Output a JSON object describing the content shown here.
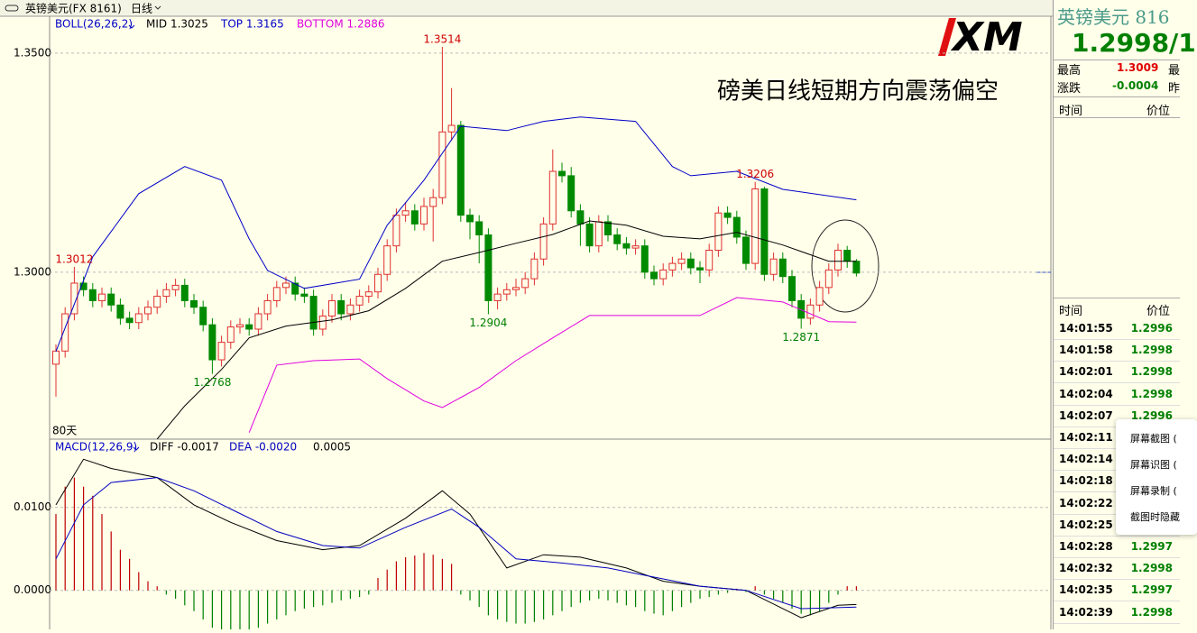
{
  "toolbar": {
    "symbol": "英镑美元(FX 8161)",
    "period": "日线"
  },
  "headline": "磅美日线短期方向震荡偏空",
  "logo": "XM",
  "chart_data": [
    {
      "type": "candlestick",
      "title": "BOLL(26,26,2)",
      "footnote": "80天",
      "up_color": "#e03030",
      "down_color": "#008a00",
      "open": [
        1.279,
        1.282,
        1.2905,
        1.2975,
        1.296,
        1.2935,
        1.295,
        1.2925,
        1.2895,
        1.2885,
        1.2905,
        1.292,
        1.2945,
        1.296,
        1.297,
        1.2935,
        1.292,
        1.288,
        1.28,
        1.284,
        1.2875,
        1.288,
        1.287,
        1.2905,
        1.2935,
        1.2965,
        1.2975,
        1.295,
        1.2945,
        1.287,
        1.29,
        1.2935,
        1.2905,
        1.2925,
        1.2945,
        1.2955,
        1.2995,
        1.306,
        1.313,
        1.314,
        1.311,
        1.315,
        1.317,
        1.332,
        1.3335,
        1.313,
        1.3115,
        1.3085,
        1.2935,
        1.295,
        1.296,
        1.2965,
        1.2985,
        1.303,
        1.311,
        1.323,
        1.322,
        1.314,
        1.311,
        1.306,
        1.3115,
        1.3085,
        1.3065,
        1.3055,
        1.306,
        1.3,
        1.2985,
        1.3005,
        1.302,
        1.303,
        1.301,
        1.3005,
        1.305,
        1.3135,
        1.3125,
        1.308,
        1.302,
        1.319,
        1.2995,
        1.303,
        1.299,
        1.2935,
        1.2895,
        1.2925,
        1.2965,
        1.3005,
        1.305,
        1.3025
      ],
      "high": [
        1.2835,
        1.292,
        1.3012,
        1.299,
        1.2975,
        1.2965,
        1.2965,
        1.294,
        1.291,
        1.292,
        1.2935,
        1.296,
        1.2975,
        1.2985,
        1.2985,
        1.295,
        1.2935,
        1.2895,
        1.2855,
        1.289,
        1.2895,
        1.2895,
        1.292,
        1.295,
        1.298,
        1.299,
        1.299,
        1.2965,
        1.296,
        1.2915,
        1.295,
        1.295,
        1.294,
        1.296,
        1.297,
        1.301,
        1.3075,
        1.3145,
        1.316,
        1.3155,
        1.317,
        1.319,
        1.3514,
        1.342,
        1.3345,
        1.3145,
        1.313,
        1.31,
        1.2965,
        1.2975,
        1.2985,
        1.3,
        1.3045,
        1.3125,
        1.328,
        1.325,
        1.324,
        1.3155,
        1.3125,
        1.313,
        1.313,
        1.31,
        1.308,
        1.3075,
        1.3075,
        1.3015,
        1.302,
        1.3035,
        1.3045,
        1.3045,
        1.3025,
        1.3065,
        1.315,
        1.315,
        1.314,
        1.3095,
        1.3206,
        1.3195,
        1.3045,
        1.3045,
        1.3005,
        1.295,
        1.294,
        1.298,
        1.302,
        1.3065,
        1.306,
        1.303
      ],
      "low": [
        1.2716,
        1.2805,
        1.289,
        1.2945,
        1.292,
        1.292,
        1.291,
        1.288,
        1.287,
        1.287,
        1.289,
        1.2905,
        1.293,
        1.2945,
        1.292,
        1.2905,
        1.2865,
        1.2768,
        1.2785,
        1.2825,
        1.286,
        1.2855,
        1.2855,
        1.289,
        1.292,
        1.295,
        1.2935,
        1.293,
        1.2855,
        1.2855,
        1.2885,
        1.289,
        1.289,
        1.291,
        1.293,
        1.294,
        1.298,
        1.3045,
        1.3115,
        1.3095,
        1.3095,
        1.307,
        1.3155,
        1.33,
        1.3115,
        1.3075,
        1.302,
        1.2904,
        1.2915,
        1.2935,
        1.2945,
        1.295,
        1.297,
        1.3015,
        1.3095,
        1.3205,
        1.3125,
        1.306,
        1.3045,
        1.3045,
        1.307,
        1.305,
        1.304,
        1.304,
        1.2985,
        1.297,
        1.297,
        1.299,
        1.3005,
        1.2995,
        1.2975,
        1.299,
        1.3035,
        1.311,
        1.3065,
        1.3005,
        1.3005,
        1.298,
        1.298,
        1.2975,
        1.292,
        1.2871,
        1.288,
        1.291,
        1.295,
        1.299,
        1.301,
        1.299
      ],
      "close": [
        1.282,
        1.2905,
        1.2975,
        1.296,
        1.2935,
        1.295,
        1.2925,
        1.2895,
        1.2885,
        1.2905,
        1.292,
        1.2945,
        1.296,
        1.297,
        1.2935,
        1.292,
        1.288,
        1.28,
        1.284,
        1.2875,
        1.288,
        1.287,
        1.2905,
        1.2935,
        1.2965,
        1.2975,
        1.295,
        1.2945,
        1.287,
        1.29,
        1.2935,
        1.2905,
        1.2925,
        1.2945,
        1.2955,
        1.2995,
        1.306,
        1.313,
        1.314,
        1.311,
        1.315,
        1.317,
        1.332,
        1.3335,
        1.313,
        1.3115,
        1.3085,
        1.2935,
        1.295,
        1.296,
        1.2965,
        1.2985,
        1.303,
        1.311,
        1.323,
        1.322,
        1.314,
        1.311,
        1.306,
        1.3115,
        1.3085,
        1.3065,
        1.3055,
        1.306,
        1.3,
        1.2985,
        1.3005,
        1.302,
        1.303,
        1.301,
        1.3005,
        1.305,
        1.3135,
        1.3125,
        1.308,
        1.302,
        1.319,
        1.2995,
        1.303,
        1.299,
        1.2935,
        1.2895,
        1.2925,
        1.2965,
        1.3005,
        1.305,
        1.3025,
        1.2998
      ],
      "series": [
        {
          "name": "MID 1.3025",
          "color": "#000000",
          "x": [
            11,
            14,
            18,
            21,
            25,
            30,
            34,
            38,
            42,
            46,
            50,
            54,
            58,
            62,
            66,
            70,
            74,
            79,
            84,
            87
          ],
          "values": [
            1.2619,
            1.2695,
            1.2778,
            1.285,
            1.2877,
            1.2891,
            1.2912,
            1.2963,
            1.3025,
            1.3045,
            1.3066,
            1.3086,
            1.3117,
            1.3107,
            1.3082,
            1.3076,
            1.3091,
            1.3062,
            1.3025,
            1.3025
          ]
        },
        {
          "name": "TOP 1.3165",
          "color": "#0000c8",
          "x": [
            0,
            4,
            9,
            14,
            18,
            21,
            23,
            27,
            33,
            36,
            40,
            44,
            49,
            53,
            57,
            63,
            67,
            69,
            74,
            79,
            87
          ],
          "values": [
            1.2819,
            1.3035,
            1.3179,
            1.3241,
            1.321,
            1.3076,
            1.3004,
            1.2963,
            1.2984,
            1.3107,
            1.321,
            1.3333,
            1.3323,
            1.3344,
            1.3354,
            1.3344,
            1.3241,
            1.322,
            1.323,
            1.3189,
            1.3165
          ]
        },
        {
          "name": "BOTTOM 1.2886",
          "color": "#e000e0",
          "x": [
            21,
            24,
            28,
            33,
            36,
            40,
            42,
            46,
            50,
            54,
            58,
            62,
            66,
            70,
            74,
            79,
            84,
            87
          ],
          "values": [
            1.2634,
            1.2788,
            1.2798,
            1.2802,
            1.2757,
            1.2706,
            1.2691,
            1.2737,
            1.2798,
            1.285,
            1.2901,
            1.2901,
            1.2901,
            1.2901,
            1.2942,
            1.2932,
            1.2887,
            1.2886
          ]
        }
      ],
      "annotations": [
        {
          "text": "1.3514",
          "position": "above",
          "color": "#d00000"
        },
        {
          "text": "1.3012",
          "position": "above",
          "color": "#d00000"
        },
        {
          "text": "1.3206",
          "position": "above",
          "color": "#d00000"
        },
        {
          "text": "1.2768",
          "position": "below",
          "color": "#008000"
        },
        {
          "text": "1.2904",
          "position": "below",
          "color": "#008000"
        },
        {
          "text": "1.2871",
          "position": "below",
          "color": "#008000"
        }
      ],
      "ylim": [
        1.2619,
        1.3584
      ],
      "yticks": [
        {
          "value": 1.3,
          "label": "1.3000"
        },
        {
          "value": 1.35,
          "label": "1.3500"
        }
      ],
      "grid": true
    },
    {
      "type": "macd",
      "title": "MACD(12,26,9)",
      "histogram": {
        "name": "0.0005",
        "up_color": "#c00000",
        "down_color": "#008000",
        "values": [
          0.0092,
          0.0125,
          0.0136,
          0.0125,
          0.0114,
          0.0092,
          0.0071,
          0.0049,
          0.0038,
          0.0022,
          0.0011,
          0.0005,
          -0.0005,
          -0.001,
          -0.0018,
          -0.0025,
          -0.0035,
          -0.0045,
          -0.005,
          -0.0052,
          -0.005,
          -0.0048,
          -0.0045,
          -0.004,
          -0.0035,
          -0.003,
          -0.0025,
          -0.0022,
          -0.002,
          -0.0018,
          -0.0015,
          -0.0012,
          -0.001,
          -0.0008,
          -0.0005,
          0.0015,
          0.0025,
          0.0035,
          0.004,
          0.0042,
          0.0045,
          0.0043,
          0.0038,
          0.0032,
          -0.0005,
          -0.0012,
          -0.002,
          -0.003,
          -0.0035,
          -0.0038,
          -0.004,
          -0.004,
          -0.0038,
          -0.0035,
          -0.003,
          -0.0025,
          -0.002,
          -0.0015,
          -0.0012,
          -0.001,
          -0.0012,
          -0.0015,
          -0.0018,
          -0.002,
          -0.0025,
          -0.0028,
          -0.003,
          -0.0025,
          -0.002,
          -0.0015,
          -0.001,
          -0.0008,
          -0.0005,
          -0.0003,
          0.0002,
          -0.0002,
          0.0005,
          -0.0005,
          -0.001,
          -0.0015,
          -0.0022,
          -0.0028,
          -0.003,
          -0.0025,
          -0.0015,
          -0.0005,
          0.0005,
          0.0005
        ]
      },
      "series": [
        {
          "name": "DIFF -0.0017",
          "color": "#000000",
          "x": [
            0,
            3,
            6,
            11,
            15,
            19,
            24,
            29,
            33,
            38,
            42,
            45,
            49,
            53,
            57,
            62,
            66,
            70,
            75,
            81,
            85,
            87
          ],
          "values": [
            0.0103,
            0.0158,
            0.0147,
            0.0136,
            0.0103,
            0.0082,
            0.006,
            0.0049,
            0.0054,
            0.0087,
            0.012,
            0.0092,
            0.0027,
            0.0043,
            0.004,
            0.0027,
            0.0011,
            0.0005,
            0.0,
            -0.0033,
            -0.0018,
            -0.0017
          ]
        },
        {
          "name": "DEA -0.0020",
          "color": "#0000c0",
          "x": [
            0,
            3,
            6,
            11,
            15,
            19,
            24,
            29,
            33,
            38,
            43,
            46,
            50,
            55,
            60,
            65,
            70,
            75,
            81,
            87
          ],
          "values": [
            0.0038,
            0.0103,
            0.013,
            0.0136,
            0.012,
            0.0098,
            0.0071,
            0.0054,
            0.0051,
            0.0076,
            0.0098,
            0.0076,
            0.0038,
            0.0033,
            0.0027,
            0.0016,
            0.0005,
            0.0,
            -0.0022,
            -0.002
          ]
        }
      ],
      "ylim": [
        -0.0047,
        0.0179
      ],
      "yticks": [
        {
          "value": 0,
          "label": "0.0000"
        },
        {
          "value": 0.01,
          "label": "0.0100"
        }
      ],
      "grid": true
    }
  ],
  "quote_panel": {
    "title": "英镑美元  816",
    "price": "1.2998/1",
    "stats": [
      [
        "最高",
        "1.3009",
        "最"
      ],
      [
        "涨跌",
        "-0.0004",
        "昨"
      ]
    ],
    "columns": [
      "时间",
      "价位"
    ],
    "ticks": [
      {
        "time": "14:01:55",
        "price": "1.2996"
      },
      {
        "time": "14:01:58",
        "price": "1.2998"
      },
      {
        "time": "14:02:01",
        "price": "1.2998"
      },
      {
        "time": "14:02:04",
        "price": "1.2998"
      },
      {
        "time": "14:02:07",
        "price": "1.2996"
      },
      {
        "time": "14:02:11",
        "price": null
      },
      {
        "time": "14:02:14",
        "price": null
      },
      {
        "time": "14:02:18",
        "price": null
      },
      {
        "time": "14:02:22",
        "price": null
      },
      {
        "time": "14:02:25",
        "price": null
      },
      {
        "time": "14:02:28",
        "price": "1.2997"
      },
      {
        "time": "14:02:32",
        "price": "1.2998"
      },
      {
        "time": "14:02:35",
        "price": "1.2997"
      },
      {
        "time": "14:02:39",
        "price": "1.2998"
      }
    ]
  },
  "context_menu": [
    "屏幕截图 (",
    "屏幕识图 (",
    "屏幕录制 (",
    "截图时隐藏"
  ]
}
